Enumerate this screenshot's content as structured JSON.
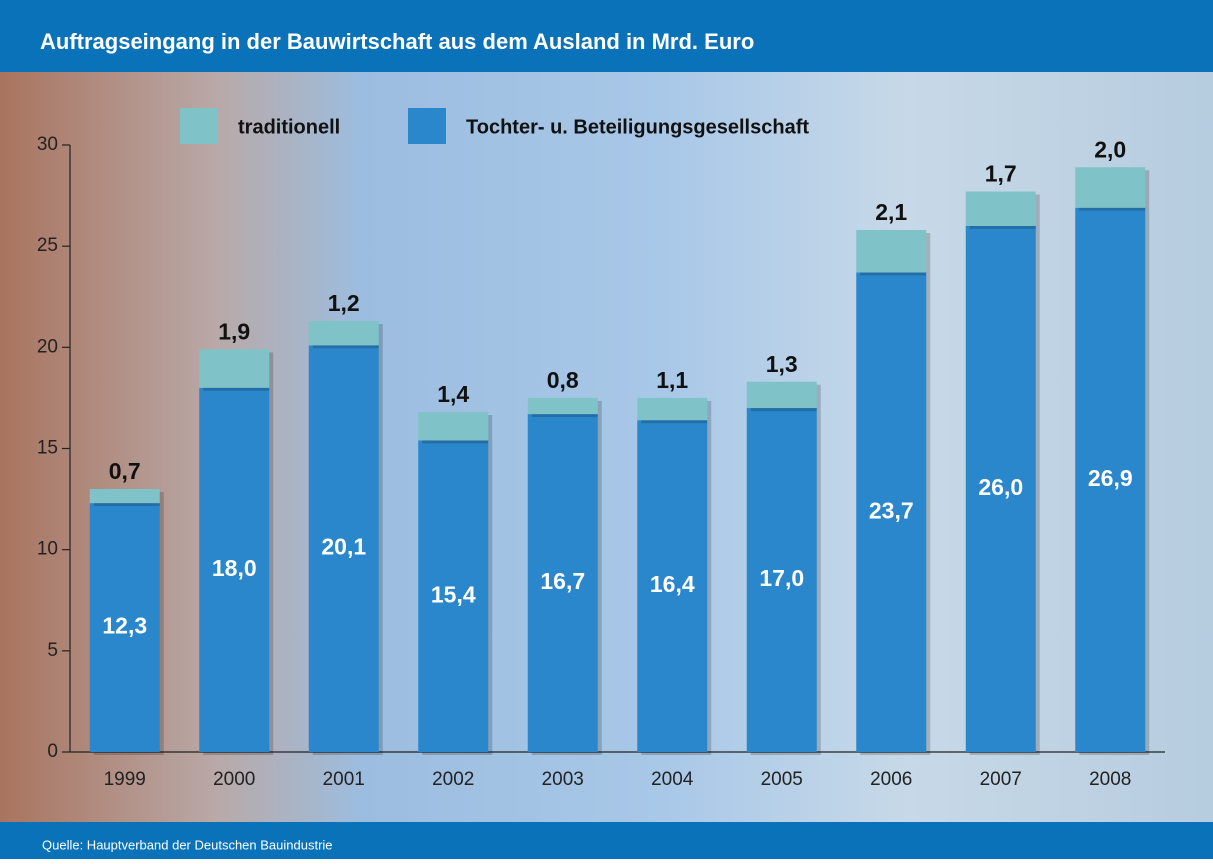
{
  "chart_data": {
    "type": "stacked_bar",
    "title": "Auftragseingang in der Bauwirtschaft aus dem Ausland in Mrd. Euro",
    "source": "Quelle: Hauptverband der Deutschen Bauindustrie",
    "categories": [
      "1999",
      "2000",
      "2001",
      "2002",
      "2003",
      "2004",
      "2005",
      "2006",
      "2007",
      "2008"
    ],
    "series": [
      {
        "name": "traditionell",
        "color": "#7fc3c8",
        "values": [
          0.7,
          1.9,
          1.2,
          1.4,
          0.8,
          1.1,
          1.3,
          2.1,
          1.7,
          2.0
        ],
        "value_labels": [
          "0,7",
          "1,9",
          "1,2",
          "1,4",
          "0,8",
          "1,1",
          "1,3",
          "2,1",
          "1,7",
          "2,0"
        ]
      },
      {
        "name": "Tochter- u. Beteiligungsgesellschaft",
        "color": "#2b87cc",
        "values": [
          12.3,
          18.0,
          20.1,
          15.4,
          16.7,
          16.4,
          17.0,
          23.7,
          26.0,
          26.9
        ],
        "value_labels": [
          "12,3",
          "18,0",
          "20,1",
          "15,4",
          "16,7",
          "16,4",
          "17,0",
          "23,7",
          "26,0",
          "26,9"
        ]
      }
    ],
    "ylim": [
      0,
      30
    ],
    "yticks": [
      0,
      5,
      10,
      15,
      20,
      25,
      30
    ]
  }
}
